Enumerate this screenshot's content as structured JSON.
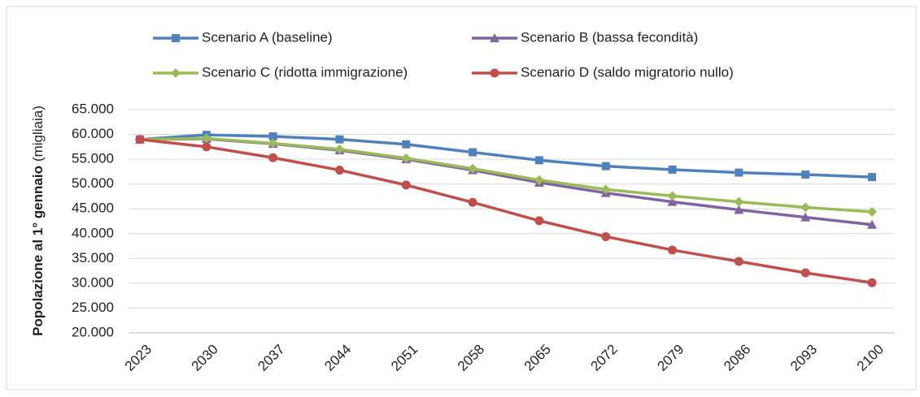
{
  "chart_data": {
    "type": "line",
    "y_label": "Popolazione al 1° gennaio",
    "y_label_unit": "(migliaia)",
    "categories": [
      "2023",
      "2030",
      "2037",
      "2044",
      "2051",
      "2058",
      "2065",
      "2072",
      "2079",
      "2086",
      "2093",
      "2100"
    ],
    "series": [
      {
        "name": "Scenario A (baseline)",
        "color": "#4f81bd",
        "marker": "square",
        "values": [
          58990,
          59900,
          59600,
          59000,
          58000,
          56400,
          54800,
          53600,
          52900,
          52300,
          51900,
          51400
        ]
      },
      {
        "name": "Scenario B (bassa fecondità)",
        "color": "#8064a2",
        "marker": "triangle",
        "values": [
          58990,
          59100,
          58100,
          56800,
          55000,
          52800,
          50300,
          48200,
          46400,
          44800,
          43300,
          41800
        ]
      },
      {
        "name": "Scenario C (ridotta immigrazione)",
        "color": "#9bbb59",
        "marker": "diamond",
        "values": [
          58990,
          59200,
          58200,
          57000,
          55200,
          53100,
          50800,
          48900,
          47600,
          46400,
          45300,
          44400
        ]
      },
      {
        "name": "Scenario D (saldo migratorio nullo)",
        "color": "#c0504d",
        "marker": "circle",
        "values": [
          58990,
          57500,
          55300,
          52800,
          49800,
          46300,
          42600,
          39400,
          36700,
          34400,
          32100,
          30100
        ]
      }
    ],
    "ylim": [
      20000,
      65000
    ],
    "yticks": [
      {
        "value": 20000,
        "label": "20.000"
      },
      {
        "value": 25000,
        "label": "25.000"
      },
      {
        "value": 30000,
        "label": "30.000"
      },
      {
        "value": 35000,
        "label": "35.000"
      },
      {
        "value": 40000,
        "label": "40.000"
      },
      {
        "value": 45000,
        "label": "45.000"
      },
      {
        "value": 50000,
        "label": "50.000"
      },
      {
        "value": 55000,
        "label": "55.000"
      },
      {
        "value": 60000,
        "label": "60.000"
      },
      {
        "value": 65000,
        "label": "65.000"
      }
    ],
    "grid": true,
    "legend": "top"
  }
}
